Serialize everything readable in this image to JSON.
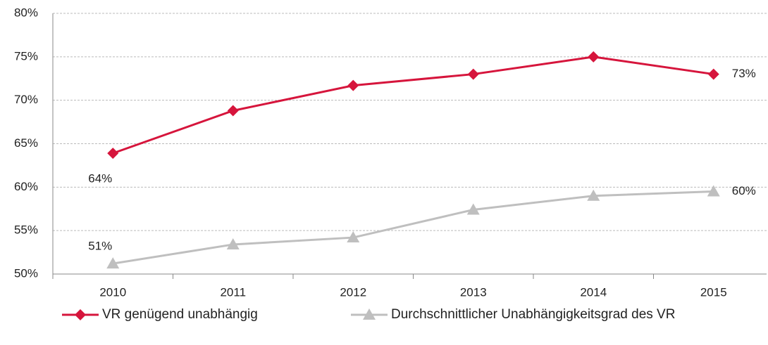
{
  "chart_data": {
    "type": "line",
    "categories": [
      "2010",
      "2011",
      "2012",
      "2013",
      "2014",
      "2015"
    ],
    "series": [
      {
        "name": "VR genügend unabhängig",
        "color": "#d6153c",
        "marker": "diamond",
        "values": [
          63.9,
          68.8,
          71.7,
          73.0,
          75.0,
          73.0
        ],
        "value_labels": [
          "64%",
          null,
          null,
          null,
          null,
          "73%"
        ]
      },
      {
        "name": "Durchschnittlicher Unabhängigkeitsgrad des VR",
        "color": "#bfbfbf",
        "marker": "triangle",
        "values": [
          51.2,
          53.4,
          54.2,
          57.4,
          59.0,
          59.5
        ],
        "value_labels": [
          "51%",
          null,
          null,
          null,
          null,
          "60%"
        ]
      }
    ],
    "ylim": [
      50,
      80
    ],
    "yticks": [
      {
        "value": 50,
        "label": "50%"
      },
      {
        "value": 55,
        "label": "55%"
      },
      {
        "value": 60,
        "label": "60%"
      },
      {
        "value": 65,
        "label": "65%"
      },
      {
        "value": 70,
        "label": "70%"
      },
      {
        "value": 75,
        "label": "75%"
      },
      {
        "value": 80,
        "label": "80%"
      }
    ],
    "grid": true,
    "legend": "bottom"
  }
}
